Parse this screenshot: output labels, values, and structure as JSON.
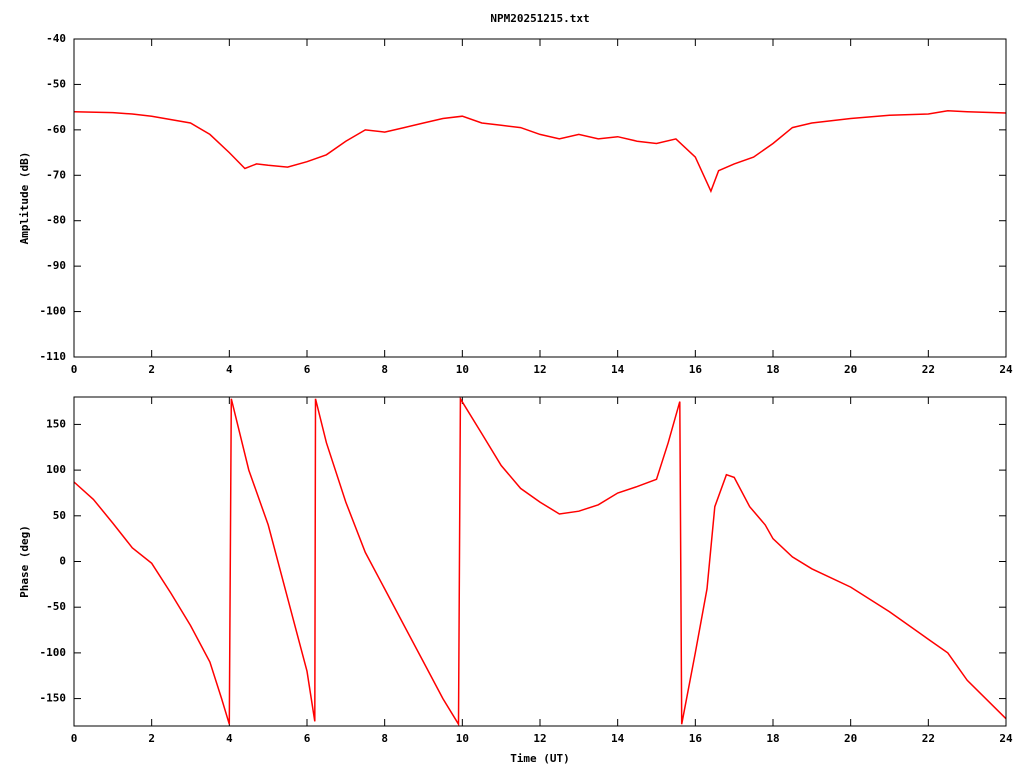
{
  "chart_data": [
    {
      "type": "line",
      "title": "NPM20251215.txt",
      "y_label": "Amplitude (dB)",
      "color": "#ff0000",
      "xlim": [
        0,
        24
      ],
      "xticks": [
        0,
        2,
        4,
        6,
        8,
        10,
        12,
        14,
        16,
        18,
        20,
        22,
        24
      ],
      "ylim": [
        -110,
        -40
      ],
      "yticks": [
        -40,
        -50,
        -60,
        -70,
        -80,
        -90,
        -100,
        -110
      ],
      "x": [
        0,
        1,
        1.5,
        2,
        3,
        3.5,
        4,
        4.4,
        4.7,
        5,
        5.5,
        6,
        6.5,
        7,
        7.5,
        8,
        8.5,
        9,
        9.5,
        10,
        10.5,
        11,
        11.5,
        12,
        12.5,
        13,
        13.5,
        14,
        14.5,
        15,
        15.5,
        16,
        16.4,
        16.6,
        17,
        17.5,
        18,
        18.5,
        19,
        20,
        21,
        22,
        22.5,
        23,
        24
      ],
      "values": [
        -56,
        -56.2,
        -56.5,
        -57,
        -58.5,
        -61,
        -65,
        -68.5,
        -67.5,
        -67.8,
        -68.2,
        -67,
        -65.5,
        -62.5,
        -60,
        -60.5,
        -59.5,
        -58.5,
        -57.5,
        -57,
        -58.5,
        -59,
        -59.5,
        -61,
        -62,
        -61,
        -62,
        -61.5,
        -62.5,
        -63,
        -62,
        -66,
        -73.5,
        -69,
        -67.5,
        -66,
        -63,
        -59.5,
        -58.5,
        -57.5,
        -56.8,
        -56.5,
        -55.8,
        -56,
        -56.3
      ]
    },
    {
      "type": "line",
      "x_label": "Time (UT)",
      "y_label": "Phase (deg)",
      "color": "#ff0000",
      "xlim": [
        0,
        24
      ],
      "xticks": [
        0,
        2,
        4,
        6,
        8,
        10,
        12,
        14,
        16,
        18,
        20,
        22,
        24
      ],
      "ylim": [
        -180,
        180
      ],
      "yticks": [
        -150,
        -100,
        -50,
        0,
        50,
        100,
        150
      ],
      "x": [
        0,
        0.5,
        1,
        1.5,
        2,
        2.5,
        3,
        3.5,
        3.8,
        4,
        4.05,
        4.5,
        5,
        5.5,
        6,
        6.2,
        6.22,
        6.5,
        7,
        7.5,
        8,
        8.5,
        9,
        9.5,
        9.9,
        9.95,
        10.5,
        11,
        11.5,
        12,
        12.5,
        13,
        13.5,
        14,
        14.5,
        15,
        15.3,
        15.6,
        15.65,
        16,
        16.3,
        16.5,
        16.8,
        17,
        17.4,
        17.8,
        18,
        18.5,
        19,
        20,
        21,
        22,
        22.5,
        23,
        24
      ],
      "values": [
        87,
        68,
        42,
        15,
        -2,
        -35,
        -70,
        -110,
        -150,
        -178,
        178,
        100,
        40,
        -40,
        -120,
        -175,
        178,
        130,
        65,
        10,
        -30,
        -70,
        -110,
        -150,
        -178,
        178,
        140,
        105,
        80,
        65,
        52,
        55,
        62,
        75,
        82,
        90,
        130,
        175,
        -178,
        -100,
        -30,
        60,
        95,
        92,
        60,
        40,
        25,
        5,
        -8,
        -28,
        -55,
        -85,
        -100,
        -130,
        -172
      ]
    }
  ]
}
